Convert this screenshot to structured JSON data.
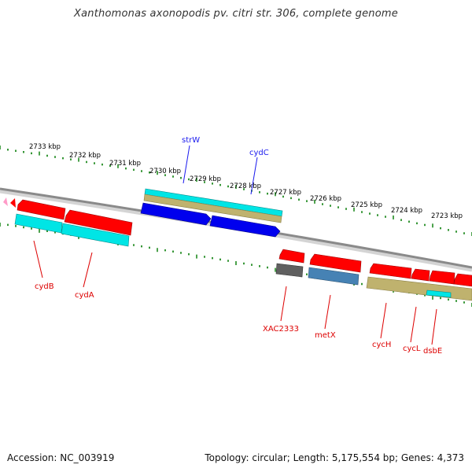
{
  "title": "Xanthomonas axonopodis pv. citri str. 306, complete genome",
  "footer": {
    "accession": "Accession: NC_003919",
    "summary": "Topology: circular; Length: 5,175,554 bp; Genes: 4,373"
  },
  "colors": {
    "red": "#ff0000",
    "cyan": "#00e5e5",
    "olive": "#bfb26e",
    "blue": "#0000ee",
    "gray": "#606060",
    "steel": "#4682b4",
    "pink": "#ff9bc8",
    "tick": "#1f8a1f",
    "backbone": "#888888",
    "label_forward": "#1a1aee",
    "label_reverse": "#dd0000"
  },
  "axis": {
    "unit": "kbp",
    "labels": [
      "2733 kbp",
      "2732 kbp",
      "2731 kbp",
      "2730 kbp",
      "2729 kbp",
      "2728 kbp",
      "2727 kbp",
      "2726 kbp",
      "2725 kbp",
      "2724 kbp",
      "2723 kbp"
    ]
  },
  "gene_labels": {
    "forward": [
      "strW",
      "cydC"
    ],
    "reverse": [
      "cydB",
      "cydA",
      "XAC2333",
      "metX",
      "cycH",
      "cycL",
      "dsbE"
    ]
  }
}
